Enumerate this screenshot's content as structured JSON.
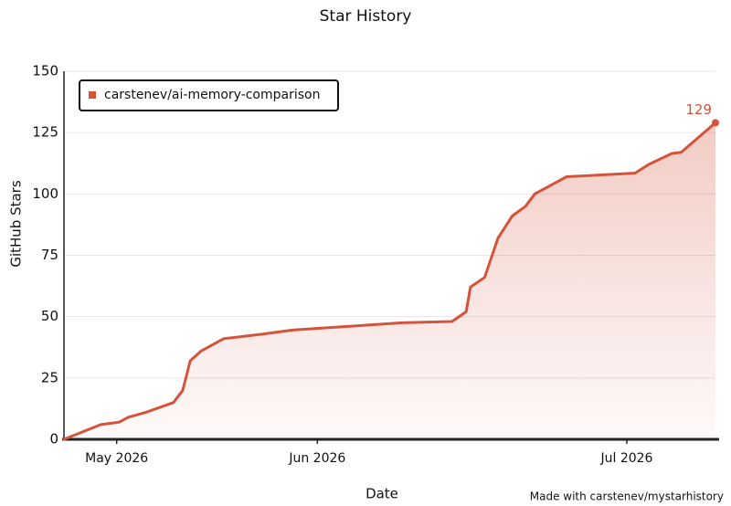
{
  "chart_data": {
    "type": "line",
    "title": "Star History",
    "xlabel": "Date",
    "ylabel": "GitHub Stars",
    "footer": "Made with carstenev/mystarhistory",
    "x": [
      114.7,
      119.1,
      121.3,
      122.4,
      124.5,
      127.8,
      128.9,
      129.8,
      131.1,
      133.8,
      138.7,
      142.0,
      148.6,
      155.1,
      161.1,
      162.8,
      163.3,
      165.0,
      166.6,
      168.3,
      169.9,
      171.0,
      174.8,
      183.0,
      184.6,
      187.4,
      188.5,
      192.6
    ],
    "series": [
      {
        "name": "carstenev/ai-memory-comparison",
        "color": "#d5533a",
        "values": [
          0,
          6,
          7,
          9,
          11,
          15,
          20,
          32,
          36,
          41,
          43,
          44.5,
          46,
          47.5,
          48,
          52,
          62,
          66,
          82,
          91,
          95,
          100,
          107,
          108.5,
          112,
          116.5,
          117,
          129
        ]
      }
    ],
    "xlim": [
      114.7,
      192.6
    ],
    "xticks": [
      {
        "value": 121,
        "label": "May 2026"
      },
      {
        "value": 145,
        "label": "Jun 2026"
      },
      {
        "value": 182,
        "label": "Jul 2026"
      }
    ],
    "ylim": [
      0,
      150
    ],
    "yticks": [
      0,
      25,
      50,
      75,
      100,
      125,
      150
    ],
    "grid": true,
    "legend": "upper left"
  }
}
